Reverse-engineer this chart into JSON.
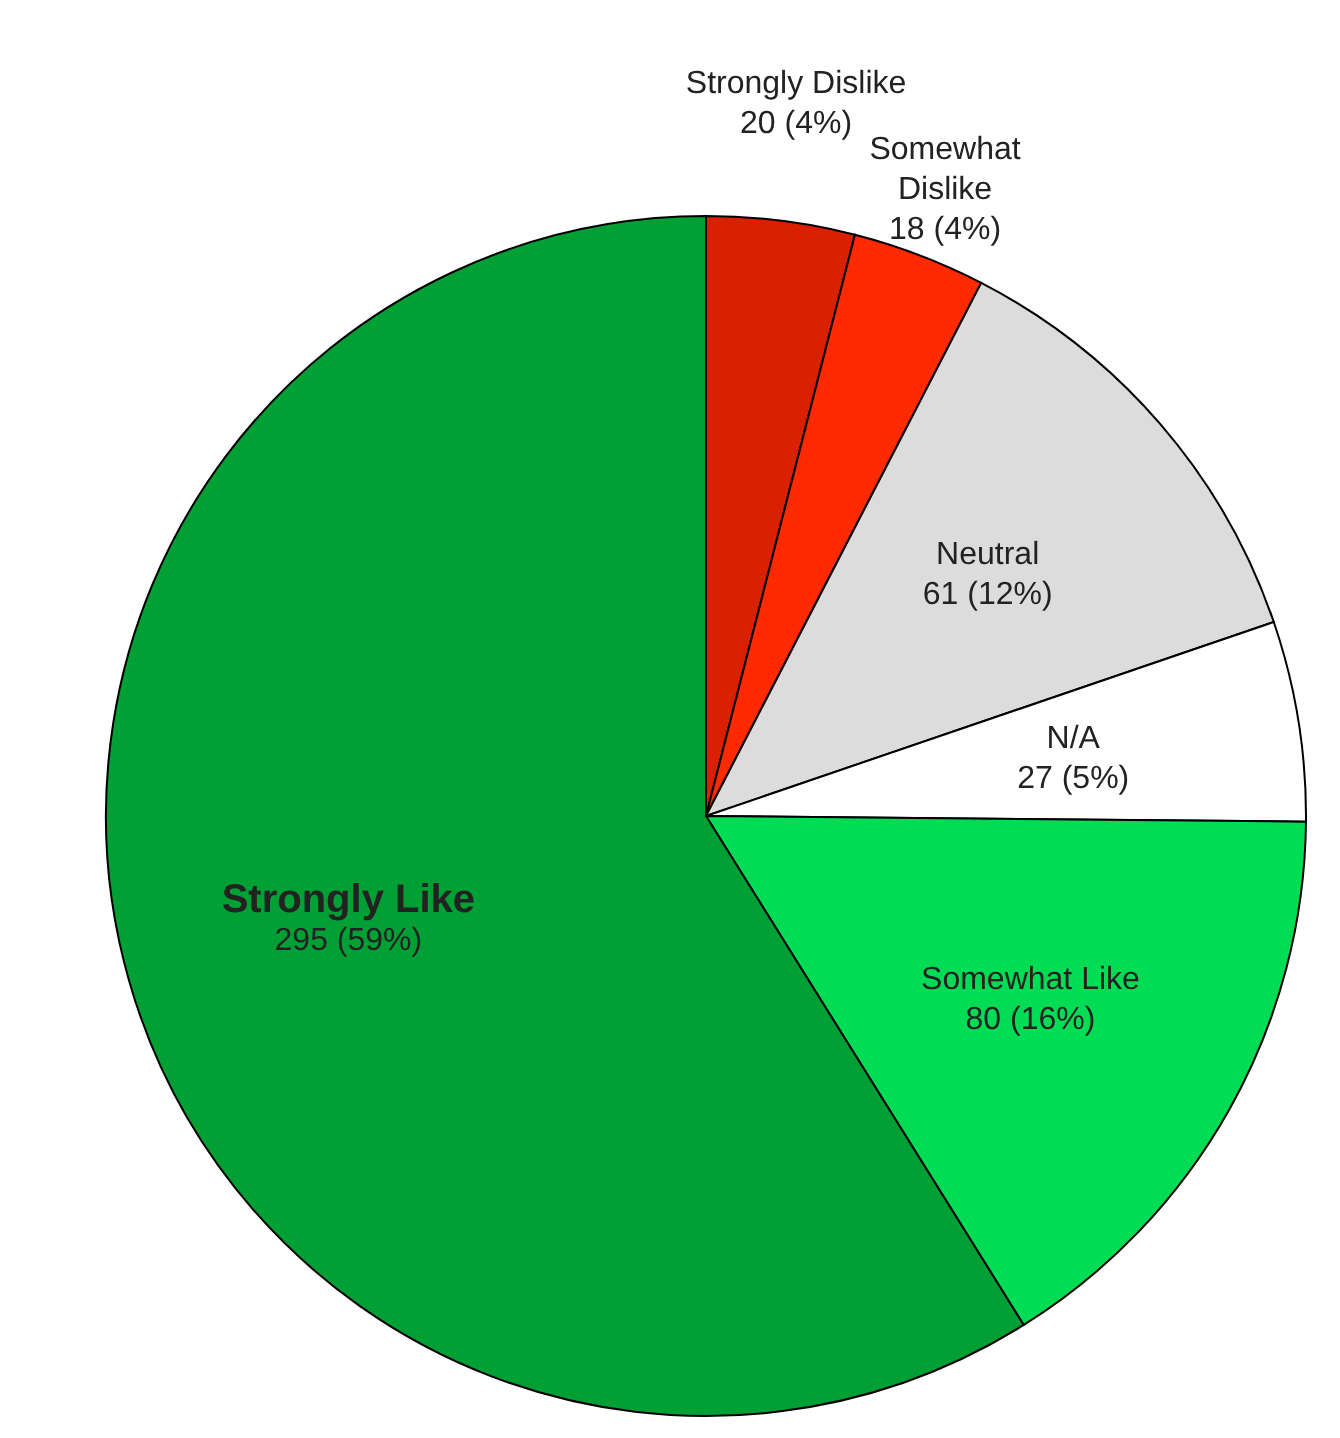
{
  "chart_data": {
    "type": "pie",
    "categories": [
      "Strongly Dislike",
      "Somewhat Dislike",
      "Neutral",
      "N/A",
      "Somewhat Like",
      "Strongly Like"
    ],
    "values": [
      20,
      18,
      61,
      27,
      80,
      295
    ],
    "value_labels": [
      "20 (4%)",
      "18 (4%)",
      "61 (12%)",
      "27 (5%)",
      "80 (16%)",
      "295 (59%)"
    ],
    "colors": [
      "#d92000",
      "#ff2a00",
      "#dcdcdc",
      "#ffffff",
      "#00dd55",
      "#00a035"
    ]
  }
}
